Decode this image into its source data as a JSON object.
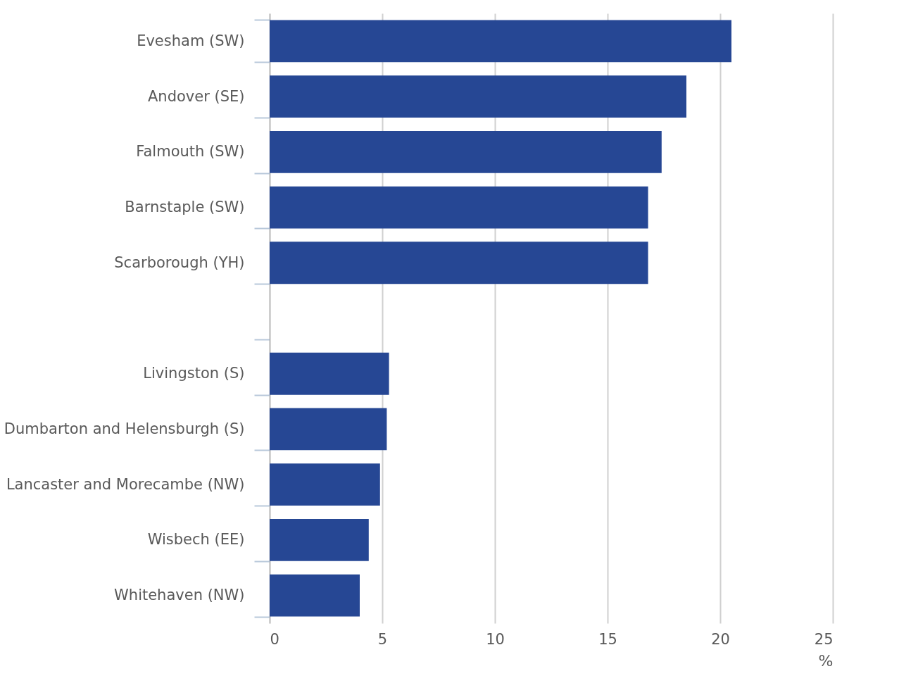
{
  "chart_data": {
    "type": "bar",
    "orientation": "horizontal",
    "categories": [
      "Evesham (SW)",
      "Andover (SE)",
      "Falmouth (SW)",
      "Barnstaple (SW)",
      "Scarborough (YH)",
      null,
      "Livingston (S)",
      "Dumbarton and Helensburgh (S)",
      "Lancaster and Morecambe (NW)",
      "Wisbech (EE)",
      "Whitehaven (NW)"
    ],
    "values": [
      20.5,
      18.5,
      17.4,
      16.8,
      16.8,
      null,
      5.3,
      5.2,
      4.9,
      4.4,
      4.0
    ],
    "color": "#264794",
    "xlabel": "%",
    "xlim": [
      0,
      25
    ],
    "xticks": [
      0,
      5,
      10,
      15,
      20,
      25
    ],
    "grid": "x"
  }
}
